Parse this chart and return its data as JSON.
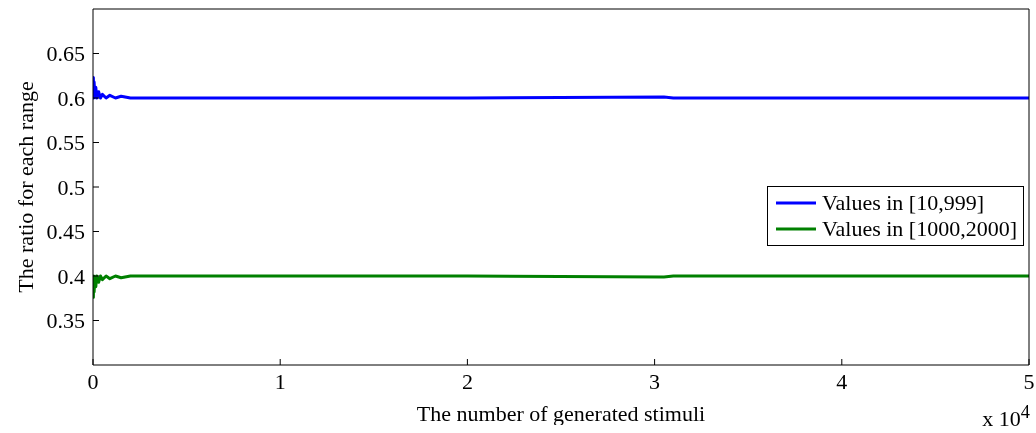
{
  "chart_data": {
    "type": "line",
    "xlabel": "The number of generated stimuli",
    "ylabel": "The ratio for each range",
    "x": [
      0,
      0.002,
      0.004,
      0.006,
      0.01,
      0.015,
      0.02,
      0.03,
      0.04,
      0.05,
      0.07,
      0.09,
      0.12,
      0.15,
      0.2,
      1,
      2,
      3.05,
      3.1,
      4,
      5
    ],
    "series": [
      {
        "name": "Values in [10,999]",
        "color": "#0000ff",
        "values": [
          0.6,
          0.623,
          0.6,
          0.618,
          0.601,
          0.612,
          0.6,
          0.607,
          0.6,
          0.604,
          0.6,
          0.603,
          0.6,
          0.602,
          0.6,
          0.6,
          0.6,
          0.601,
          0.6,
          0.6,
          0.6
        ]
      },
      {
        "name": "Values in [1000,2000]",
        "color": "#008000",
        "values": [
          0.4,
          0.376,
          0.4,
          0.382,
          0.399,
          0.388,
          0.4,
          0.393,
          0.4,
          0.396,
          0.4,
          0.397,
          0.4,
          0.398,
          0.4,
          0.4,
          0.4,
          0.399,
          0.4,
          0.4,
          0.4
        ]
      }
    ],
    "xlim": [
      0,
      5
    ],
    "xticks": [
      0,
      1,
      2,
      3,
      4,
      5
    ],
    "ylim": [
      0.3,
      0.7
    ],
    "yticks": [
      0.35,
      0.4,
      0.45,
      0.5,
      0.55,
      0.6,
      0.65
    ],
    "grid": false,
    "legend": "right",
    "marker": "none",
    "line_style": "solid",
    "annotations": [
      "x 10$^{4}$"
    ]
  }
}
